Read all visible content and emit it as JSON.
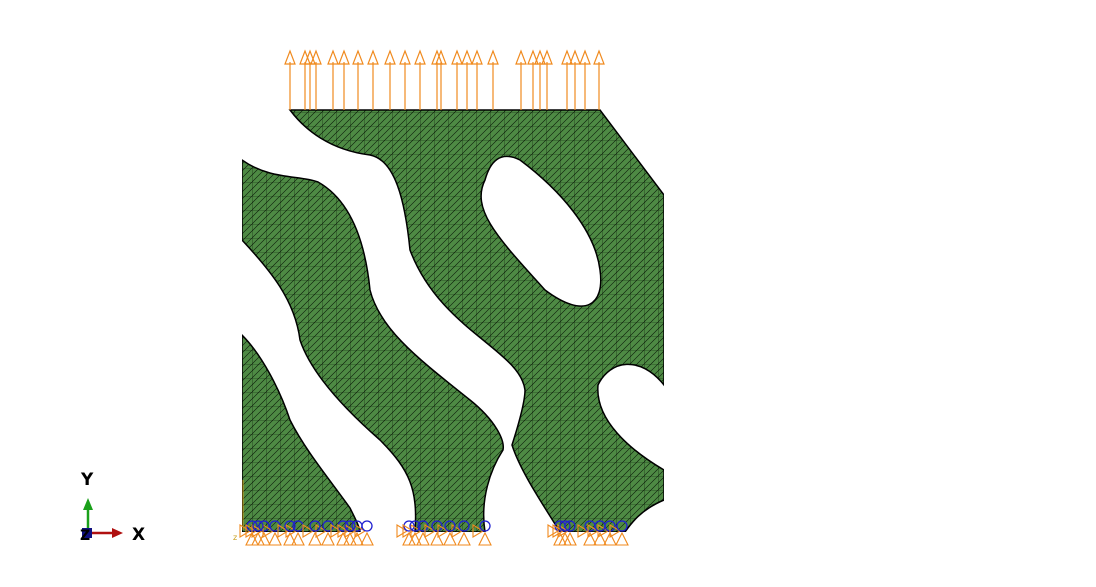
{
  "viewport": {
    "background": "#ffffff",
    "model": {
      "fill_color": "#4e8a44",
      "mesh_color": "#0a1a08",
      "load_color": "#f08a1e",
      "bc_color": "#2020d0",
      "triad_color": "#c8a020",
      "load_arrow_count": 25,
      "bc_symbol_count": 26
    }
  },
  "triad": {
    "y_label": "Y",
    "x_label": "X",
    "z_label": "Z",
    "y_color": "#1aa01a",
    "x_color": "#b01010",
    "z_color": "#101080"
  }
}
